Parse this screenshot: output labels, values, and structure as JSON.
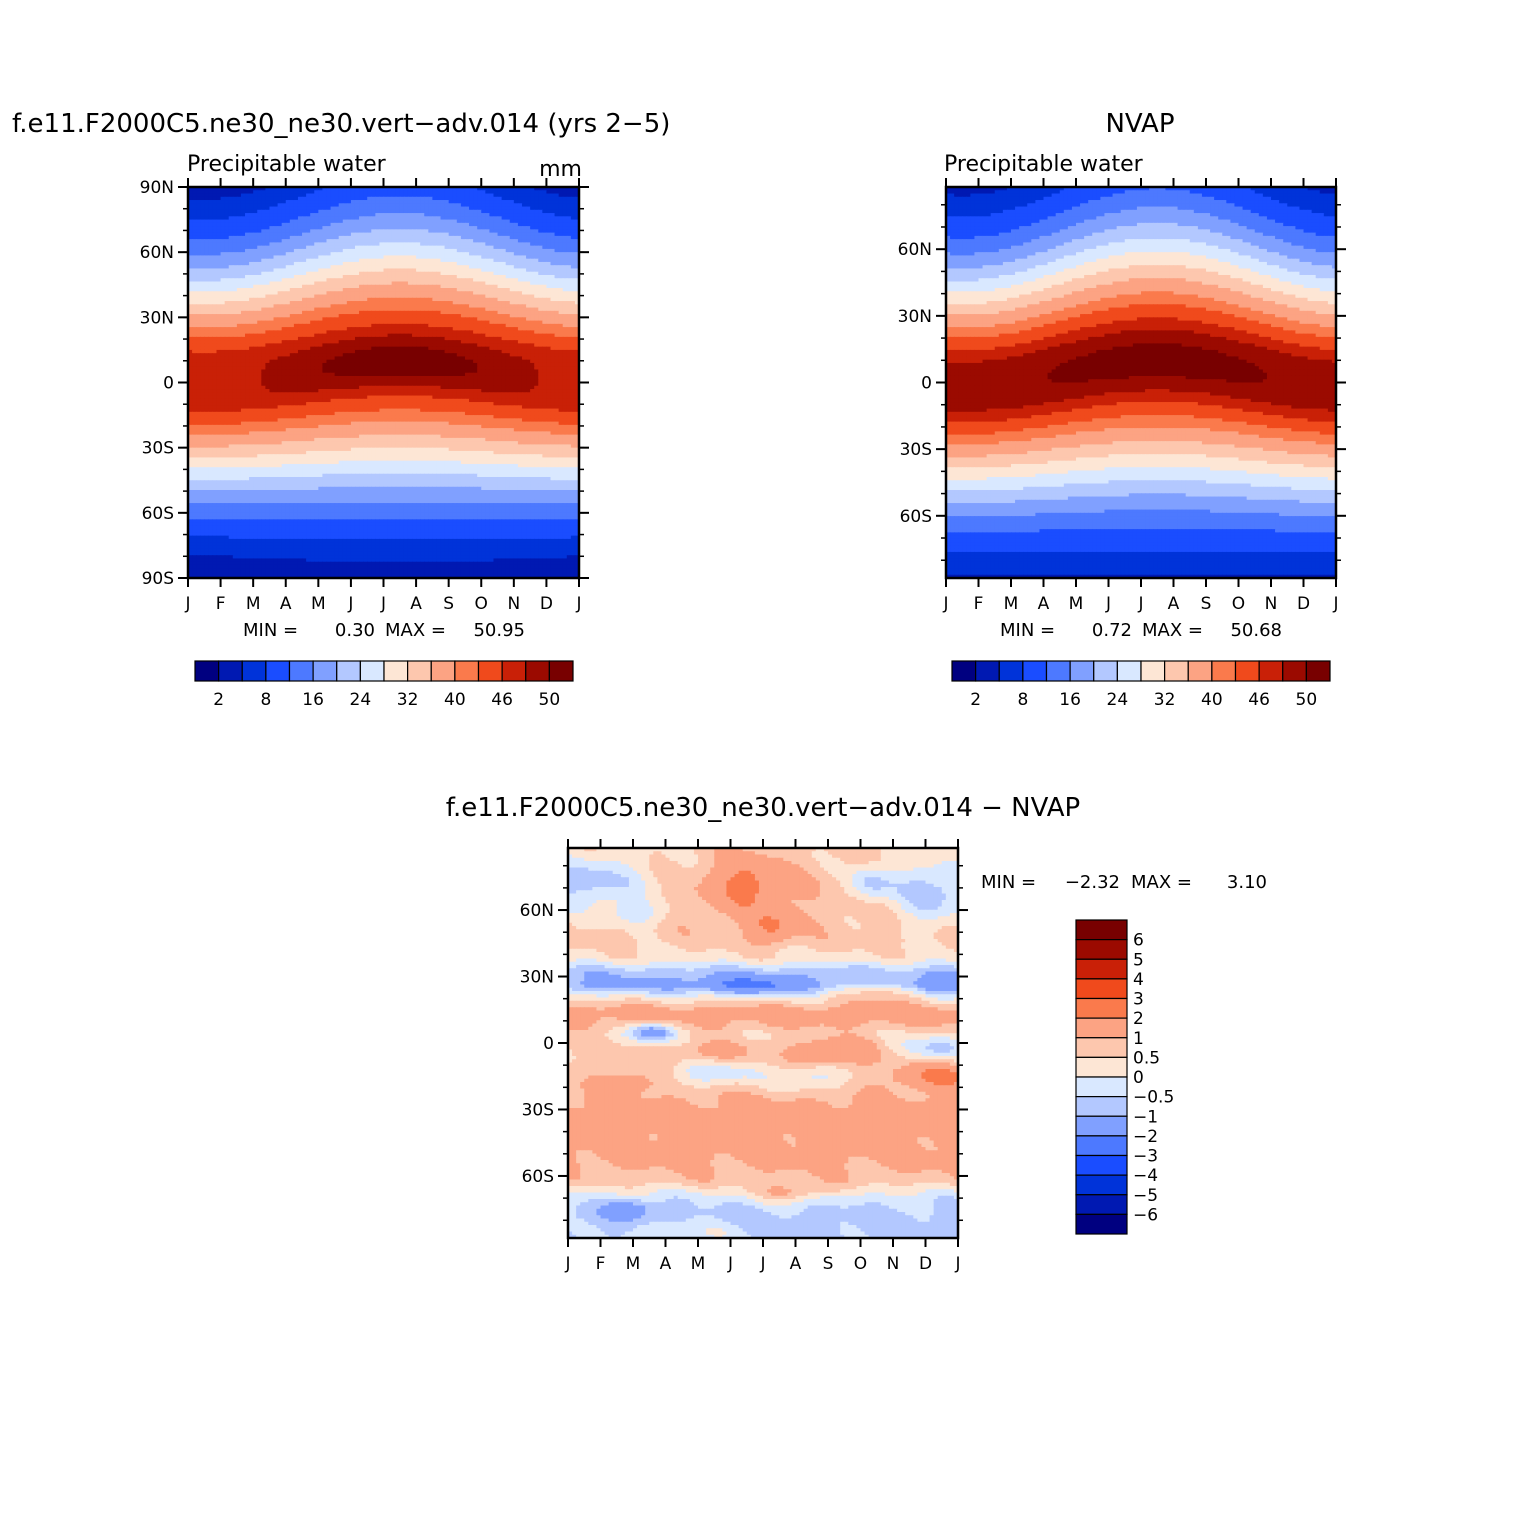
{
  "figure": {
    "chart_data": [
      {
        "id": "model",
        "type": "heatmap",
        "title": "f.e11.F2000C5.ne30_ne30.vert−adv.014 (yrs 2−5)",
        "left_label": "Precipitable water",
        "right_label": "mm",
        "x_ticks": [
          "J",
          "F",
          "M",
          "A",
          "M",
          "J",
          "J",
          "A",
          "S",
          "O",
          "N",
          "D",
          "J"
        ],
        "y_ticks": [
          {
            "v": 90,
            "t": "90N"
          },
          {
            "v": 60,
            "t": "60N"
          },
          {
            "v": 30,
            "t": "30N"
          },
          {
            "v": 0,
            "t": "0"
          },
          {
            "v": -30,
            "t": "30S"
          },
          {
            "v": -60,
            "t": "60S"
          },
          {
            "v": -90,
            "t": "90S"
          }
        ],
        "ylim": [
          -90,
          90
        ],
        "stats": {
          "min_label": "MIN =",
          "min": "0.30",
          "max_label": "MAX =",
          "max": "50.95"
        },
        "levels": [
          2,
          5,
          8,
          12,
          16,
          20,
          24,
          28,
          32,
          36,
          40,
          43,
          46,
          48,
          50
        ],
        "colorbar_labels": [
          "2",
          "8",
          "16",
          "24",
          "32",
          "40",
          "46",
          "50"
        ],
        "colormap": [
          "#000080",
          "#0019b2",
          "#0033d9",
          "#1a4dff",
          "#4d79ff",
          "#80a0ff",
          "#b3c8ff",
          "#d9e8ff",
          "#fde6d5",
          "#fdc7ae",
          "#fca383",
          "#fa7a4c",
          "#f04a1c",
          "#c92007",
          "#9b0a00",
          "#780000"
        ],
        "field": {
          "base": 0.3,
          "amp": 49,
          "lat_center": 5,
          "lat_seasonal_amp": 5,
          "width_north": 42,
          "width_south": 40,
          "width_seasonal_amp": 3,
          "core_amp": 2.2,
          "core_center": 5
        }
      },
      {
        "id": "obs",
        "type": "heatmap",
        "title": "NVAP",
        "left_label": "Precipitable water",
        "right_label": "",
        "x_ticks": [
          "J",
          "F",
          "M",
          "A",
          "M",
          "J",
          "J",
          "A",
          "S",
          "O",
          "N",
          "D",
          "J"
        ],
        "y_ticks": [
          {
            "v": 60,
            "t": "60N"
          },
          {
            "v": 30,
            "t": "30N"
          },
          {
            "v": 0,
            "t": "0"
          },
          {
            "v": -30,
            "t": "30S"
          },
          {
            "v": -60,
            "t": "60S"
          }
        ],
        "ylim": [
          -88,
          88
        ],
        "stats": {
          "min_label": "MIN =",
          "min": "0.72",
          "max_label": "MAX =",
          "max": "50.68"
        },
        "levels": [
          2,
          5,
          8,
          12,
          16,
          20,
          24,
          28,
          32,
          36,
          40,
          43,
          46,
          48,
          50
        ],
        "colorbar_labels": [
          "2",
          "8",
          "16",
          "24",
          "32",
          "40",
          "46",
          "50"
        ],
        "colormap": [
          "#000080",
          "#0019b2",
          "#0033d9",
          "#1a4dff",
          "#4d79ff",
          "#80a0ff",
          "#b3c8ff",
          "#d9e8ff",
          "#fde6d5",
          "#fdc7ae",
          "#fca383",
          "#fa7a4c",
          "#f04a1c",
          "#c92007",
          "#9b0a00",
          "#780000"
        ],
        "field": {
          "base": 0.7,
          "amp": 49.5,
          "lat_center": 4,
          "lat_seasonal_amp": 6,
          "width_north": 42,
          "width_south": 41,
          "width_seasonal_amp": 3,
          "core_amp": 1.0,
          "core_center": 4
        }
      },
      {
        "id": "diff",
        "type": "heatmap",
        "title": "f.e11.F2000C5.ne30_ne30.vert−adv.014 − NVAP",
        "x_ticks": [
          "J",
          "F",
          "M",
          "A",
          "M",
          "J",
          "J",
          "A",
          "S",
          "O",
          "N",
          "D",
          "J"
        ],
        "y_ticks": [
          {
            "v": 60,
            "t": "60N"
          },
          {
            "v": 30,
            "t": "30N"
          },
          {
            "v": 0,
            "t": "0"
          },
          {
            "v": -30,
            "t": "30S"
          },
          {
            "v": -60,
            "t": "60S"
          }
        ],
        "ylim": [
          -88,
          88
        ],
        "stats": {
          "min_label": "MIN =",
          "min": "−2.32",
          "max_label": "MAX =",
          "max": "3.10"
        },
        "levels": [
          -6,
          -5,
          -4,
          -3,
          -2,
          -1,
          -0.5,
          0,
          0.5,
          1,
          2,
          3,
          4,
          5,
          6
        ],
        "colorbar_labels": [
          "6",
          "5",
          "4",
          "3",
          "2",
          "1",
          "0.5",
          "0",
          "−0.5",
          "−1",
          "−2",
          "−3",
          "−4",
          "−5",
          "−6"
        ],
        "colormap": [
          "#000080",
          "#0019b2",
          "#0033d9",
          "#1a4dff",
          "#4d79ff",
          "#80a0ff",
          "#b3c8ff",
          "#d9e8ff",
          "#fde6d5",
          "#fdc7ae",
          "#fca383",
          "#fa7a4c",
          "#f04a1c",
          "#c92007",
          "#9b0a00",
          "#780000"
        ],
        "lat_profile": [
          {
            "lat": -88,
            "v": -0.7
          },
          {
            "lat": -78,
            "v": -0.7
          },
          {
            "lat": -70,
            "v": -0.3
          },
          {
            "lat": -62,
            "v": 0.8
          },
          {
            "lat": -52,
            "v": 1.2
          },
          {
            "lat": -40,
            "v": 1.3
          },
          {
            "lat": -30,
            "v": 1.3
          },
          {
            "lat": -22,
            "v": 0.9
          },
          {
            "lat": -12,
            "v": 0.7
          },
          {
            "lat": -4,
            "v": 0.6
          },
          {
            "lat": 4,
            "v": 0.6
          },
          {
            "lat": 10,
            "v": 1.2
          },
          {
            "lat": 14,
            "v": 1.4
          },
          {
            "lat": 20,
            "v": 0.3
          },
          {
            "lat": 26,
            "v": -1.2
          },
          {
            "lat": 32,
            "v": -0.8
          },
          {
            "lat": 38,
            "v": 0.3
          },
          {
            "lat": 46,
            "v": 0.7
          },
          {
            "lat": 55,
            "v": 0.8
          },
          {
            "lat": 65,
            "v": 0.9
          },
          {
            "lat": 75,
            "v": 0.8
          },
          {
            "lat": 88,
            "v": 0.6
          }
        ],
        "anomalies": [
          {
            "month": 5.5,
            "lat": 72,
            "sm": 0.8,
            "sl": 9,
            "a": 1.5
          },
          {
            "month": 6.3,
            "lat": 52,
            "sm": 0.5,
            "sl": 5,
            "a": 1.4
          },
          {
            "month": 9.3,
            "lat": 72,
            "sm": 0.5,
            "sl": 6,
            "a": -1.3
          },
          {
            "month": 0.6,
            "lat": 72,
            "sm": 1.4,
            "sl": 9,
            "a": -1.6
          },
          {
            "month": 11.2,
            "lat": 68,
            "sm": 0.9,
            "sl": 10,
            "a": -1.7
          },
          {
            "month": 2.1,
            "lat": 58,
            "sm": 0.7,
            "sl": 4,
            "a": -0.9
          },
          {
            "month": 5.6,
            "lat": 26,
            "sm": 1.0,
            "sl": 3,
            "a": -1.2
          },
          {
            "month": 9.8,
            "lat": 24,
            "sm": 1.0,
            "sl": 4,
            "a": 1.2
          },
          {
            "month": 11.6,
            "lat": 26,
            "sm": 1.0,
            "sl": 4,
            "a": -0.9
          },
          {
            "month": 2.6,
            "lat": 5,
            "sm": 0.5,
            "sl": 3,
            "a": -2.3
          },
          {
            "month": 8.2,
            "lat": -4,
            "sm": 0.9,
            "sl": 4,
            "a": 1.4
          },
          {
            "month": 4.5,
            "lat": -4,
            "sm": 0.8,
            "sl": 3,
            "a": 0.8
          },
          {
            "month": 11.3,
            "lat": -2,
            "sm": 0.8,
            "sl": 4,
            "a": -1.2
          },
          {
            "month": 4.5,
            "lat": -14,
            "sm": 1.0,
            "sl": 4,
            "a": -1.1
          },
          {
            "month": 7.5,
            "lat": -16,
            "sm": 0.8,
            "sl": 4,
            "a": -1.0
          },
          {
            "month": 11.5,
            "lat": -15,
            "sm": 1.0,
            "sl": 4,
            "a": 1.5
          },
          {
            "month": 1.8,
            "lat": -18,
            "sm": 0.5,
            "sl": 3,
            "a": 1.3
          },
          {
            "month": 3.6,
            "lat": -86,
            "sm": 1.5,
            "sl": 4,
            "a": 0.6
          },
          {
            "month": 6.8,
            "lat": -68,
            "sm": 0.8,
            "sl": 3,
            "a": 1.1
          },
          {
            "month": 1.9,
            "lat": -75,
            "sm": 0.5,
            "sl": 3,
            "a": -1.2
          }
        ]
      }
    ]
  }
}
